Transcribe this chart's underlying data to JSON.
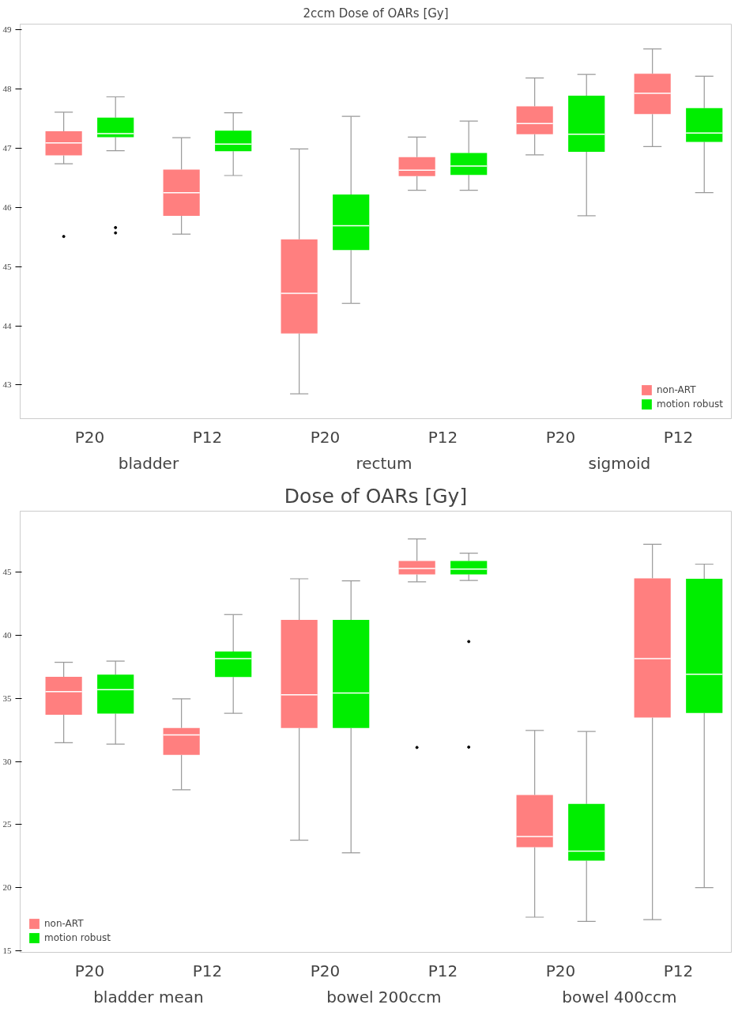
{
  "chart_data": [
    {
      "type": "box",
      "title": "2ccm Dose of OARs [Gy]",
      "categories": [
        "P20",
        "P12",
        "P20",
        "P12",
        "P20",
        "P12"
      ],
      "annotations": [
        "bladder",
        "rectum",
        "sigmoid"
      ],
      "ylim": [
        42.43,
        49.1
      ],
      "yticks": [
        43,
        44,
        45,
        46,
        47,
        48,
        49
      ],
      "legend": "bottom right",
      "series": [
        {
          "name": "non-ART",
          "color": "#ff7f7f",
          "boxes": [
            {
              "low": 46.74,
              "q1": 46.88,
              "median": 47.09,
              "q3": 47.29,
              "high": 47.61,
              "outliers": [
                45.51
              ]
            },
            {
              "low": 45.55,
              "q1": 45.86,
              "median": 46.25,
              "q3": 46.64,
              "high": 47.18
            },
            {
              "low": 42.85,
              "q1": 43.87,
              "median": 44.55,
              "q3": 45.46,
              "high": 46.99
            },
            {
              "low": 46.29,
              "q1": 46.53,
              "median": 46.63,
              "q3": 46.85,
              "high": 47.19
            },
            {
              "low": 46.89,
              "q1": 47.24,
              "median": 47.42,
              "q3": 47.71,
              "high": 48.19
            },
            {
              "low": 47.03,
              "q1": 47.58,
              "median": 47.93,
              "q3": 48.26,
              "high": 48.68
            }
          ]
        },
        {
          "name": "motion robust",
          "color": "#00ee00",
          "boxes": [
            {
              "low": 46.96,
              "q1": 47.19,
              "median": 47.25,
              "q3": 47.52,
              "high": 47.87,
              "outliers": [
                45.66,
                45.57
              ]
            },
            {
              "low": 46.54,
              "q1": 46.95,
              "median": 47.07,
              "q3": 47.3,
              "high": 47.6
            },
            {
              "low": 44.38,
              "q1": 45.28,
              "median": 45.69,
              "q3": 46.22,
              "high": 47.54
            },
            {
              "low": 46.29,
              "q1": 46.55,
              "median": 46.7,
              "q3": 46.92,
              "high": 47.46
            },
            {
              "low": 45.86,
              "q1": 46.94,
              "median": 47.24,
              "q3": 47.89,
              "high": 48.25
            },
            {
              "low": 46.25,
              "q1": 47.11,
              "median": 47.26,
              "q3": 47.68,
              "high": 48.22
            }
          ]
        }
      ]
    },
    {
      "type": "box",
      "title": "Dose of OARs [Gy]",
      "categories": [
        "P20",
        "P12",
        "P20",
        "P12",
        "P20",
        "P12"
      ],
      "annotations": [
        "bladder mean",
        "bowel 200ccm",
        "bowel 400ccm"
      ],
      "ylim": [
        14.86,
        49.85
      ],
      "yticks": [
        15,
        20,
        25,
        30,
        35,
        40,
        45
      ],
      "legend": "bottom left",
      "series": [
        {
          "name": "non-ART",
          "color": "#ff7f7f",
          "boxes": [
            {
              "low": 31.48,
              "q1": 33.7,
              "median": 35.54,
              "q3": 36.72,
              "high": 37.87
            },
            {
              "low": 27.76,
              "q1": 30.52,
              "median": 32.1,
              "q3": 32.66,
              "high": 34.97
            },
            {
              "low": 23.76,
              "q1": 32.66,
              "median": 35.28,
              "q3": 41.23,
              "high": 44.49
            },
            {
              "low": 44.24,
              "q1": 44.83,
              "median": 45.31,
              "q3": 45.9,
              "high": 47.65,
              "outliers": [
                31.11
              ]
            },
            {
              "low": 17.65,
              "q1": 23.2,
              "median": 24.04,
              "q3": 27.34,
              "high": 32.46
            },
            {
              "low": 17.45,
              "q1": 33.48,
              "median": 38.15,
              "q3": 44.52,
              "high": 47.23
            }
          ]
        },
        {
          "name": "motion robust",
          "color": "#00ee00",
          "boxes": [
            {
              "low": 31.37,
              "q1": 33.79,
              "median": 35.7,
              "q3": 36.89,
              "high": 37.96
            },
            {
              "low": 33.82,
              "q1": 36.69,
              "median": 38.15,
              "q3": 38.72,
              "high": 41.65
            },
            {
              "low": 22.75,
              "q1": 32.66,
              "median": 35.42,
              "q3": 41.23,
              "high": 44.32
            },
            {
              "low": 44.35,
              "q1": 44.83,
              "median": 45.25,
              "q3": 45.9,
              "high": 46.52,
              "outliers": [
                39.51,
                31.14
              ]
            },
            {
              "low": 17.31,
              "q1": 22.13,
              "median": 22.89,
              "q3": 26.63,
              "high": 32.38
            },
            {
              "low": 20.0,
              "q1": 33.85,
              "median": 36.92,
              "q3": 44.49,
              "high": 45.65
            }
          ]
        }
      ]
    }
  ]
}
